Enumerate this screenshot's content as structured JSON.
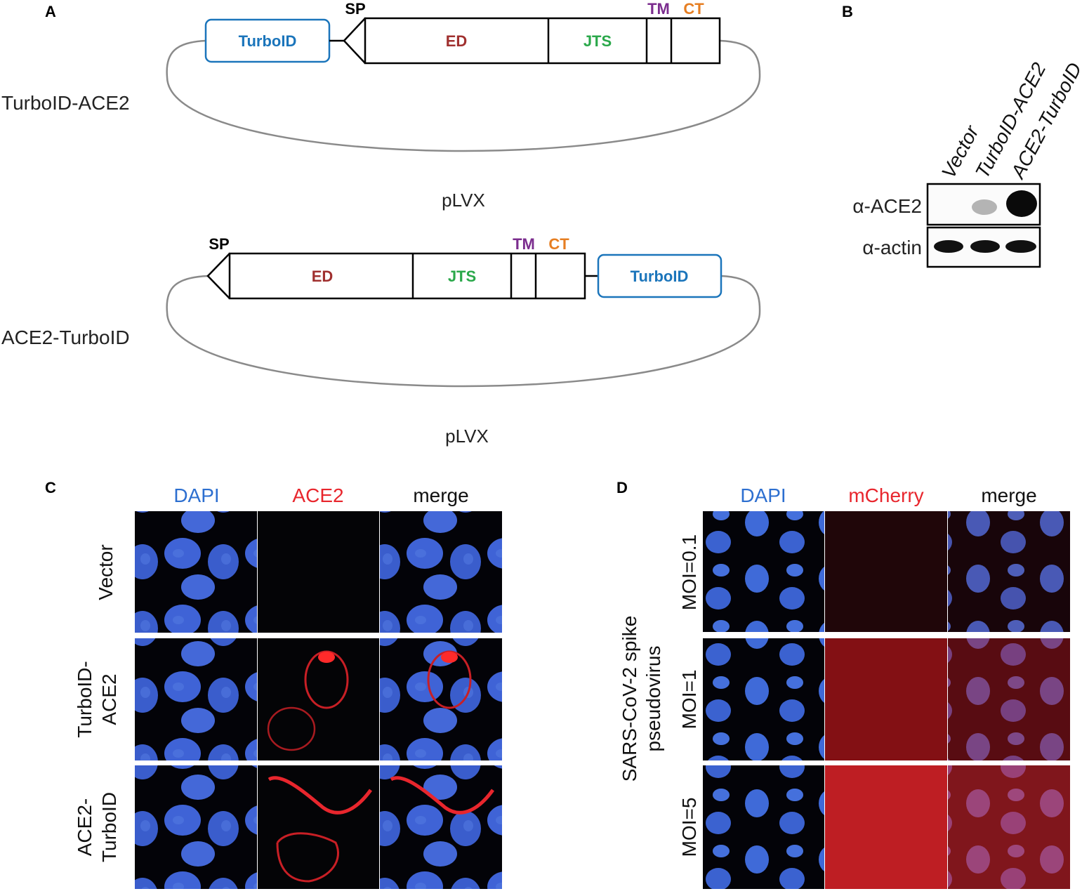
{
  "colors": {
    "turboid": "#1b75bb",
    "ed": "#a0302f",
    "jts": "#2aa84a",
    "tm": "#7b2d8e",
    "ct": "#e67e22",
    "dapi": "#2d6fd0",
    "red_channel": "#e8262d",
    "microscopy_bg": "#030308",
    "nucleus": "#3f63d6"
  },
  "panel_a": {
    "letter": "A",
    "construct_1": {
      "name": "TurboID-ACE2",
      "tag": "TurboID",
      "sp": "SP",
      "ed": "ED",
      "jts": "JTS",
      "tm": "TM",
      "ct": "CT",
      "vector": "pLVX"
    },
    "construct_2": {
      "name": "ACE2-TurboID",
      "tag": "TurboID",
      "sp": "SP",
      "ed": "ED",
      "jts": "JTS",
      "tm": "TM",
      "ct": "CT",
      "vector": "pLVX"
    }
  },
  "panel_b": {
    "letter": "B",
    "lanes": [
      "Vector",
      "TurboID-ACE2",
      "ACE2-TurboID"
    ],
    "blots": [
      "α-ACE2",
      "α-actin"
    ]
  },
  "panel_c": {
    "letter": "C",
    "channels": [
      "DAPI",
      "ACE2",
      "merge"
    ],
    "rows": [
      {
        "label_line1": "Vector",
        "label_line2": ""
      },
      {
        "label_line1": "TurboID-",
        "label_line2": "ACE2"
      },
      {
        "label_line1": "ACE2-",
        "label_line2": "TurboID"
      }
    ]
  },
  "panel_d": {
    "letter": "D",
    "channels": [
      "DAPI",
      "mCherry",
      "merge"
    ],
    "group_label_line1": "SARS-CoV-2 spike",
    "group_label_line2": "pseudovirus",
    "rows": [
      "MOI=0.1",
      "MOI=1",
      "MOI=5"
    ]
  }
}
